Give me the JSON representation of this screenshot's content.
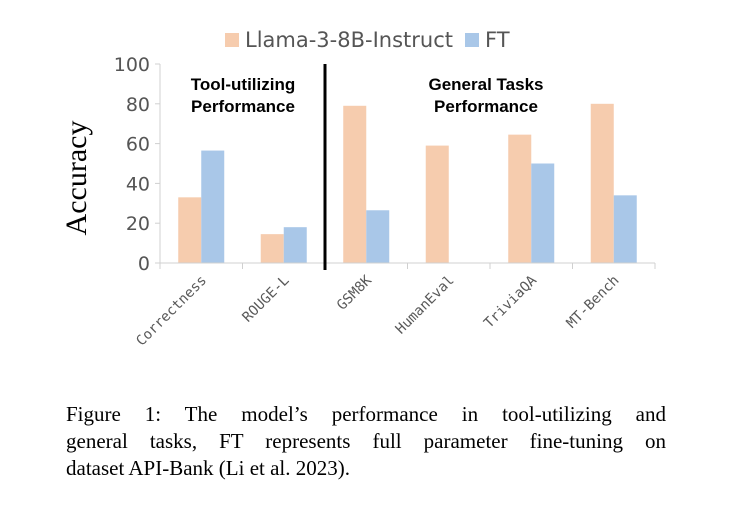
{
  "chart_data": {
    "type": "bar",
    "categories": [
      "Correctness",
      "ROUGE-L",
      "GSM8K",
      "HumanEval",
      "TriviaQA",
      "MT-Bench"
    ],
    "series": [
      {
        "name": "Llama-3-8B-Instruct",
        "color": "#f6ccae",
        "values": [
          33,
          14.5,
          79,
          59,
          64.5,
          80
        ]
      },
      {
        "name": "FT",
        "color": "#a9c7e8",
        "values": [
          56.5,
          18,
          26.5,
          0,
          50,
          34
        ]
      }
    ],
    "ylabel": "Accuracy",
    "xlabel": "",
    "ylim": [
      0,
      100
    ],
    "yticks": [
      0,
      20,
      40,
      60,
      80,
      100
    ],
    "grid": false,
    "legend_position": "top",
    "sections": [
      {
        "line1": "Tool-utilizing",
        "line2": "Performance"
      },
      {
        "line1": "General Tasks",
        "line2": "Performance"
      }
    ]
  },
  "caption": {
    "lines": [
      "Figure 1: The model’s performance in tool-utilizing and",
      "general tasks, FT represents full parameter fine-tuning on",
      "dataset API-Bank (Li et al. 2023)."
    ]
  }
}
